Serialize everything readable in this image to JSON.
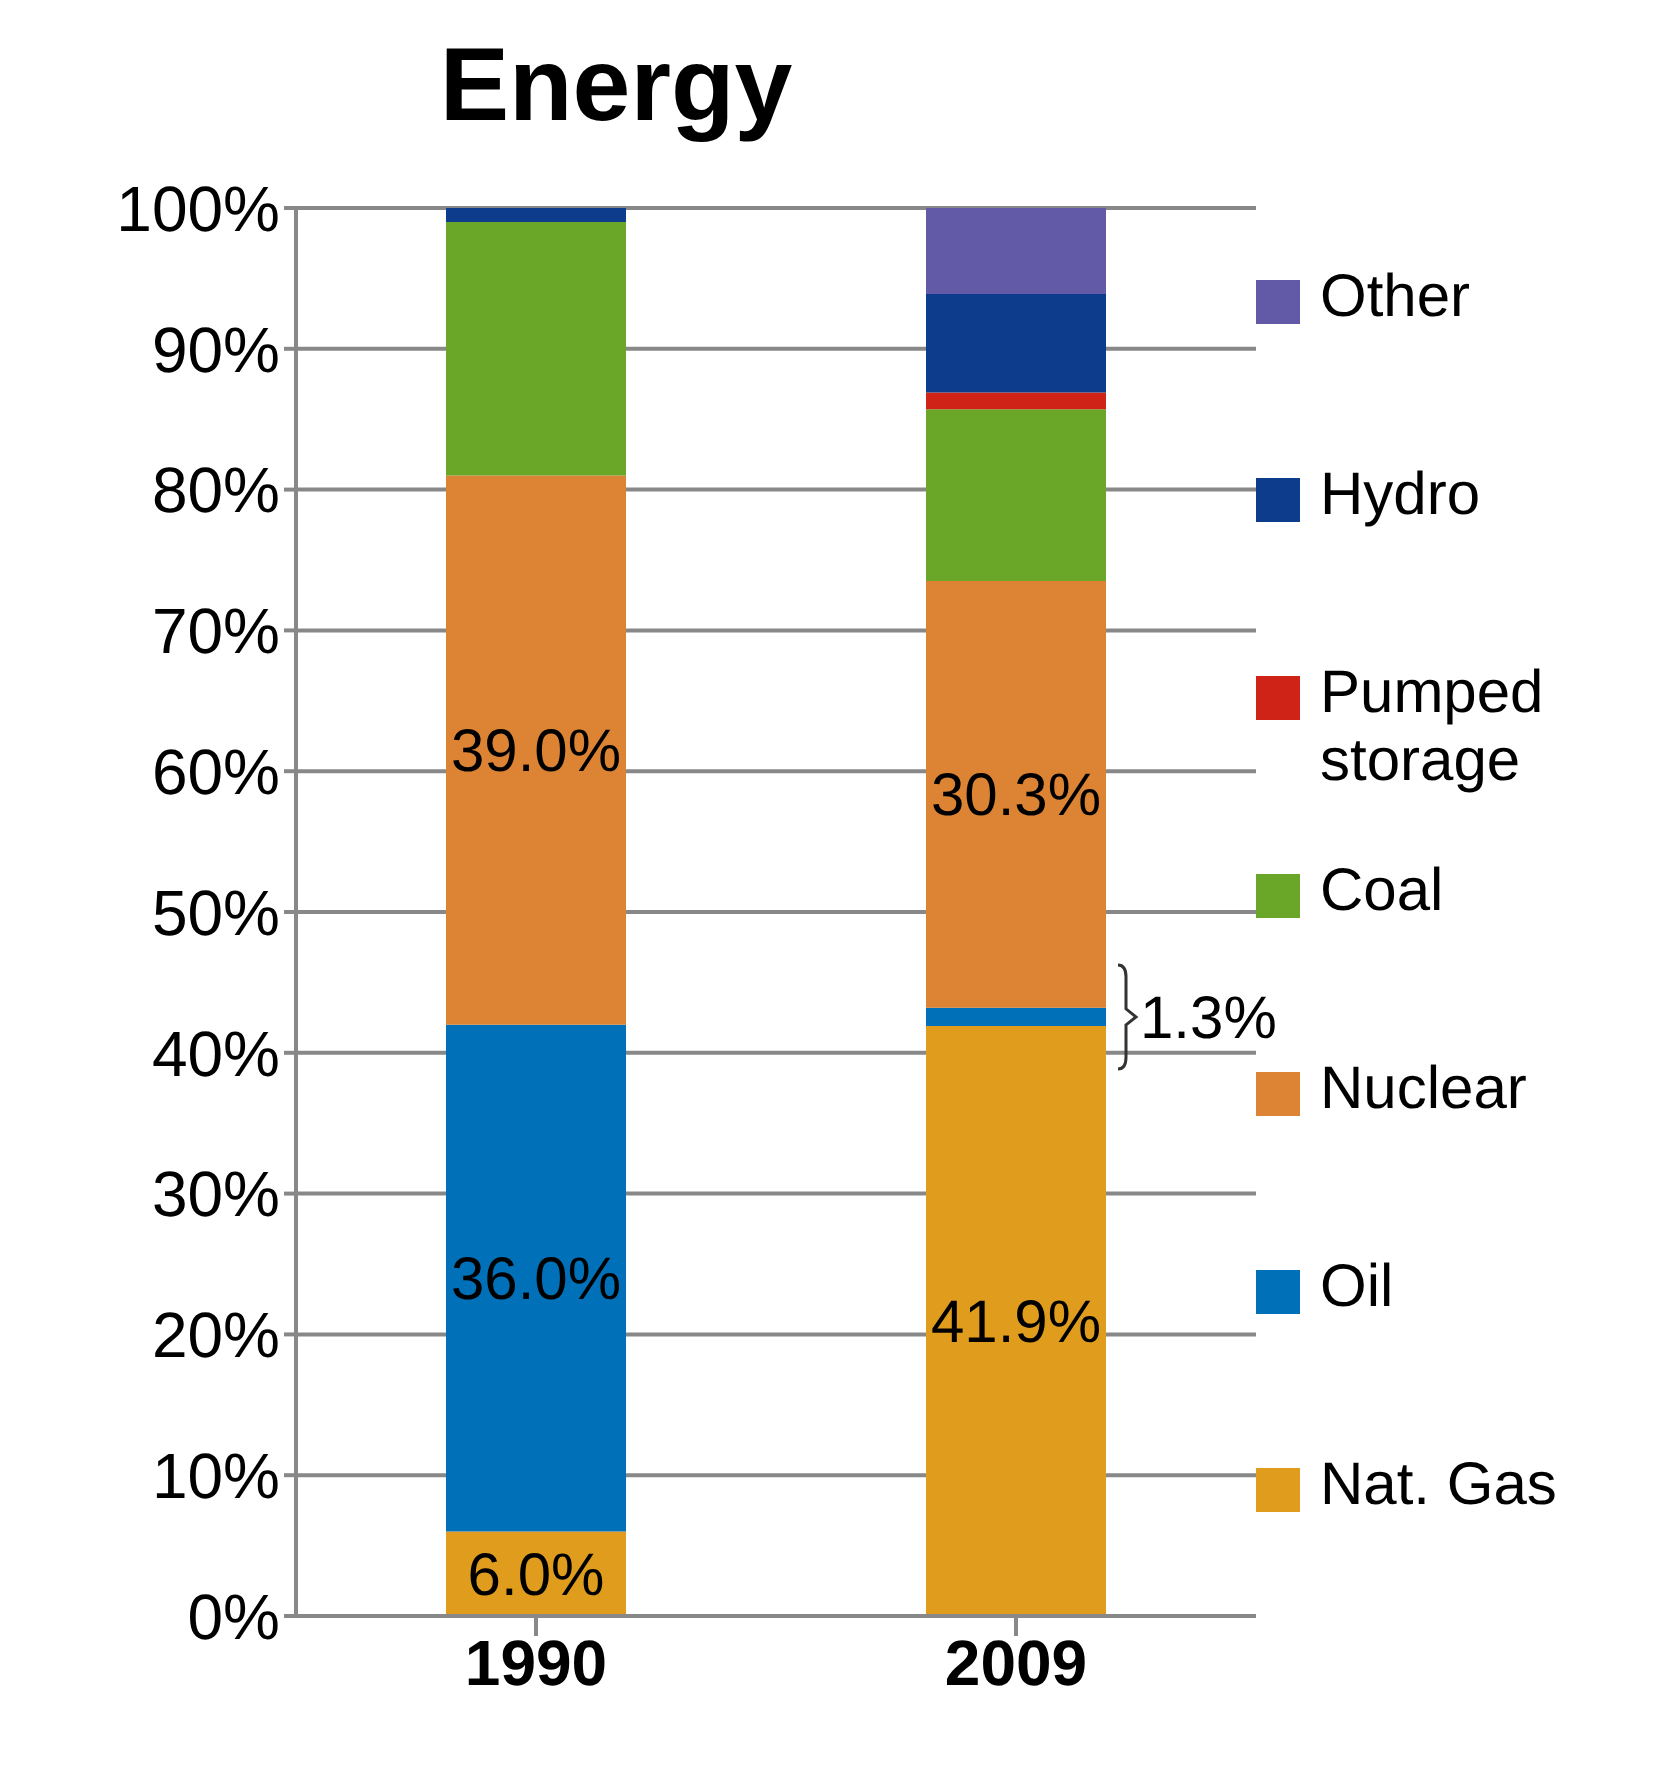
{
  "chart_data": {
    "type": "bar",
    "title": "Energy",
    "stacked": true,
    "categories": [
      "1990",
      "2009"
    ],
    "series": [
      {
        "name": "Nat. Gas",
        "color": "#e09c1c",
        "values": [
          6.0,
          41.9
        ],
        "value_labels": [
          "6.0%",
          "41.9%"
        ]
      },
      {
        "name": "Oil",
        "color": "#0070b8",
        "values": [
          36.0,
          1.3
        ],
        "value_labels": [
          "36.0%",
          null
        ]
      },
      {
        "name": "Nuclear",
        "color": "#dc8434",
        "values": [
          39.0,
          30.3
        ],
        "value_labels": [
          "39.0%",
          "30.3%"
        ]
      },
      {
        "name": "Coal",
        "color": "#6aa628",
        "values": [
          18.0,
          12.2
        ]
      },
      {
        "name": "Pumped storage",
        "color": "#d02318",
        "values": [
          0,
          1.2
        ]
      },
      {
        "name": "Hydro",
        "color": "#0e3c8c",
        "values": [
          1.0,
          7.0
        ]
      },
      {
        "name": "Other",
        "color": "#625aa6",
        "values": [
          0,
          6.1
        ]
      }
    ],
    "ylim": [
      0,
      100
    ],
    "yticks": [
      {
        "value": 0,
        "label": "0%"
      },
      {
        "value": 10,
        "label": "10%"
      },
      {
        "value": 20,
        "label": "20%"
      },
      {
        "value": 30,
        "label": "30%"
      },
      {
        "value": 40,
        "label": "40%"
      },
      {
        "value": 50,
        "label": "50%"
      },
      {
        "value": 60,
        "label": "60%"
      },
      {
        "value": 70,
        "label": "70%"
      },
      {
        "value": 80,
        "label": "80%"
      },
      {
        "value": 90,
        "label": "90%"
      },
      {
        "value": 100,
        "label": "100%"
      }
    ],
    "annotations": [
      {
        "text": "1.3%",
        "x": "2009",
        "y": 42.55
      }
    ],
    "grid": "y",
    "legend": "right"
  }
}
